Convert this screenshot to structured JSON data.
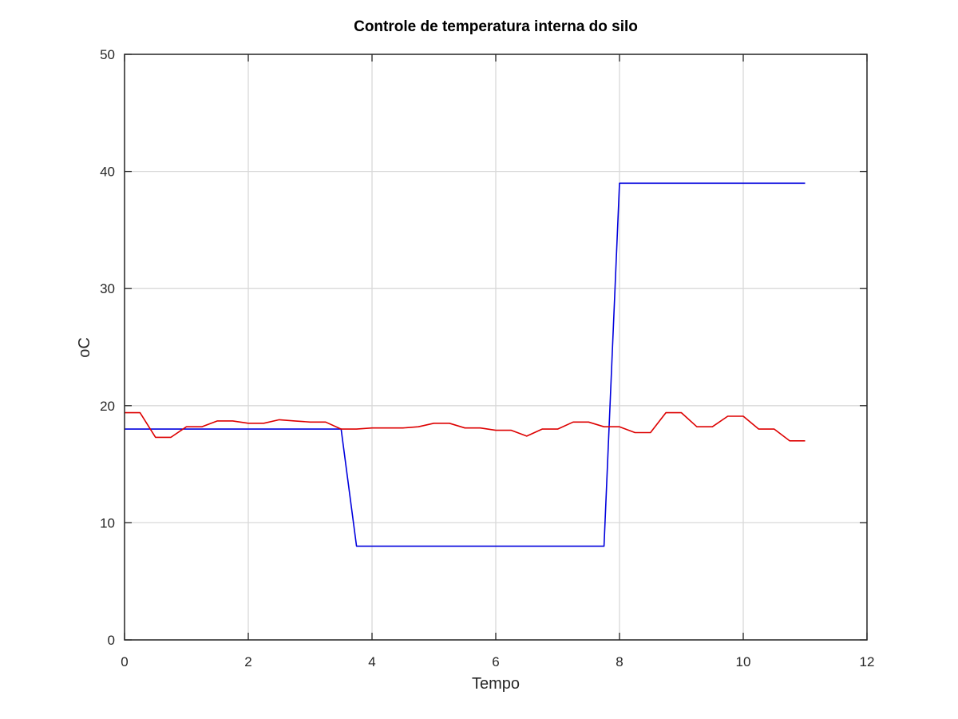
{
  "chart_data": {
    "type": "line",
    "title": "Controle de temperatura interna do silo",
    "xlabel": "Tempo",
    "ylabel": "oC",
    "xlim": [
      0,
      12
    ],
    "ylim": [
      0,
      50
    ],
    "xticks": [
      0,
      2,
      4,
      6,
      8,
      10,
      12
    ],
    "yticks": [
      0,
      10,
      20,
      30,
      40,
      50
    ],
    "grid": true,
    "colors": {
      "grid": "#d9d9d9",
      "axis": "#262626",
      "background": "#ffffff"
    },
    "series": [
      {
        "color": "#0000dd",
        "points": [
          [
            0,
            18
          ],
          [
            3.5,
            18
          ],
          [
            3.75,
            8
          ],
          [
            7.75,
            8
          ],
          [
            8,
            39
          ],
          [
            11,
            39
          ]
        ]
      },
      {
        "color": "#dd0000",
        "points": [
          [
            0,
            19.4
          ],
          [
            0.25,
            19.4
          ],
          [
            0.5,
            17.3
          ],
          [
            0.75,
            17.3
          ],
          [
            1.0,
            18.2
          ],
          [
            1.25,
            18.2
          ],
          [
            1.5,
            18.7
          ],
          [
            1.75,
            18.7
          ],
          [
            2.0,
            18.5
          ],
          [
            2.25,
            18.5
          ],
          [
            2.5,
            18.8
          ],
          [
            2.75,
            18.7
          ],
          [
            3.0,
            18.6
          ],
          [
            3.25,
            18.6
          ],
          [
            3.5,
            18.0
          ],
          [
            3.75,
            18.0
          ],
          [
            4.0,
            18.1
          ],
          [
            4.25,
            18.1
          ],
          [
            4.5,
            18.1
          ],
          [
            4.75,
            18.2
          ],
          [
            5.0,
            18.5
          ],
          [
            5.25,
            18.5
          ],
          [
            5.5,
            18.1
          ],
          [
            5.75,
            18.1
          ],
          [
            6.0,
            17.9
          ],
          [
            6.25,
            17.9
          ],
          [
            6.5,
            17.4
          ],
          [
            6.75,
            18.0
          ],
          [
            7.0,
            18.0
          ],
          [
            7.25,
            18.6
          ],
          [
            7.5,
            18.6
          ],
          [
            7.75,
            18.2
          ],
          [
            8.0,
            18.2
          ],
          [
            8.25,
            17.7
          ],
          [
            8.5,
            17.7
          ],
          [
            8.75,
            19.4
          ],
          [
            9.0,
            19.4
          ],
          [
            9.25,
            18.2
          ],
          [
            9.5,
            18.2
          ],
          [
            9.75,
            19.1
          ],
          [
            10.0,
            19.1
          ],
          [
            10.25,
            18.0
          ],
          [
            10.5,
            18.0
          ],
          [
            10.75,
            17.0
          ],
          [
            11.0,
            17.0
          ]
        ]
      }
    ]
  }
}
